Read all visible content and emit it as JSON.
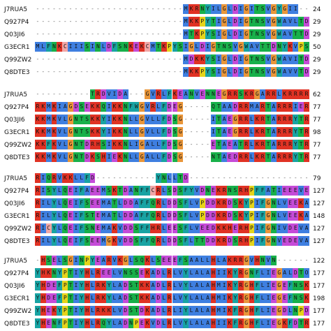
{
  "colors": {
    "hydrophobic": "#3f7fe0",
    "positive": "#e03224",
    "negative": "#c54bd8",
    "polar": "#18b04a",
    "glycine": "#e9963a",
    "proline": "#e6d41a",
    "aromatic": "#19a3a3",
    "cysteine": "#f1a6a6",
    "gap": "#ffffff"
  },
  "blocks": [
    {
      "rows": [
        {
          "name": "J7RUA5",
          "seq": "---------------------------MKRNYILGLDIGITSVGYGII--DYE-",
          "end": "24"
        },
        {
          "name": "Q927P4",
          "seq": "---------------------------MKKPYTIGLDIGTNSVGWAVLTDQYDLVK",
          "end": "29"
        },
        {
          "name": "Q03JI6",
          "seq": "---------------------------MTKPYSIGLDIGTNSVGWAVTTDNYKVPS",
          "end": "29"
        },
        {
          "name": "G3ECR1",
          "seq": "MLFNKCIIISINLDFSNKEKCMTKPYSIGLDIGTNSVGWAVTTDNYKVPS",
          "end": "50"
        },
        {
          "name": "Q99ZW2",
          "seq": "---------------------------MDKKYSIGLDIGTNSVGWAVITDEYKVPS",
          "end": "29"
        },
        {
          "name": "Q8DTE3",
          "seq": "---------------------------MKKPYSIGLDIGTNSVGWAVVTDDYKVPA",
          "end": "29"
        }
      ]
    },
    {
      "rows": [
        {
          "name": "J7RUA5",
          "seq": "----------TRDVIDA---GVRLFKEANVENNEGRRSKRGARRLKRRRRH",
          "end": "62"
        },
        {
          "name": "Q927P4",
          "seq": "RKMKIAGDSEKKQIKKNFWGVRLFDEG-----QTAADRRMARTARRRIERRRN",
          "end": "77"
        },
        {
          "name": "Q03JI6",
          "seq": "KKMKVLGNTSKKYIKKNLLGVLLFDSG-----ITAEGRRLKRTARRRYTRRRN",
          "end": "77"
        },
        {
          "name": "G3ECR1",
          "seq": "KKMKVLGNTSKKYIKKNLLGVLLFDSG-----ITAEGRRLKRTARRRYTRRRN",
          "end": "98"
        },
        {
          "name": "Q99ZW2",
          "seq": "KKFKVLGNTDRHSIKKNLIGALLFDSG-----ETAEATRLKRTARRRYTRRKN",
          "end": "77"
        },
        {
          "name": "Q8DTE3",
          "seq": "KKMKVLGNTDKSHIEKNLLGALLFDSG-----NTAEDRRLKRTARRRYTRRRN",
          "end": "77"
        }
      ]
    },
    {
      "rows": [
        {
          "name": "J7RUA5",
          "seq": "RIQRVKKLLFD-----------YNLLTD-------------------------",
          "end": "79"
        },
        {
          "name": "Q927P4",
          "seq": "RISYLQEIFAEEMSKTDANFFCRLSDSFYVDNEKRNSRHPFFATIEEEVE",
          "end": "127"
        },
        {
          "name": "Q03JI6",
          "seq": "RILYLQEIFSEEMATLDDAFFQRLDDSFLVPDDKRDSKYPIFGNLVEEKA",
          "end": "127"
        },
        {
          "name": "G3ECR1",
          "seq": "RILYLQEIFSTEMATLDDAFFQRLDDSFLVPDDKRDSKYPIFGNLVEEKA",
          "end": "148"
        },
        {
          "name": "Q99ZW2",
          "seq": "RICYLQEIFSNEMAKVDDSFFHRLEESFLVEEDKKHERHPIFGNIVDEVA",
          "end": "127"
        },
        {
          "name": "Q8DTE3",
          "seq": "RILYLQEIFSEEMGKVDDSFFQRLDDSFLTTDDKRDSRHPIFGNVEDEVA",
          "end": "127"
        }
      ]
    },
    {
      "rows": [
        {
          "name": "J7RUA5",
          "seq": "-HSELSGINPYEARVKGLSQKLSEEEFSAALLHLAKRRGVHNVN------",
          "end": "122"
        },
        {
          "name": "Q927P4",
          "seq": "YHKNYPTIYHLREELVNSSEKADLRLVYLALAHIIKYRGNFLIEGALDTO",
          "end": "177"
        },
        {
          "name": "Q03JI6",
          "seq": "YHDEFPTIYHLRKYLADSTKKADLRLVYLALAHMIKYRGHFLIEGEFNSK",
          "end": "177"
        },
        {
          "name": "G3ECR1",
          "seq": "YHDEFPTIYHLRKYLADSTKKADLRLVYLALAHMIKYRGHFLIEGEFNSK",
          "end": "198"
        },
        {
          "name": "Q99ZW2",
          "seq": "YHEKYPTIYHLRKKLVDSTDKADLRLIYLALAHMIKFRGHFLIEGDLNPD",
          "end": "177"
        },
        {
          "name": "Q8DTE3",
          "seq": "YHENFPTIYHLRQYLADNPEKVDLRLVYLALAHIIKFRGHFLIEGKFDTR",
          "end": "177"
        }
      ]
    }
  ]
}
